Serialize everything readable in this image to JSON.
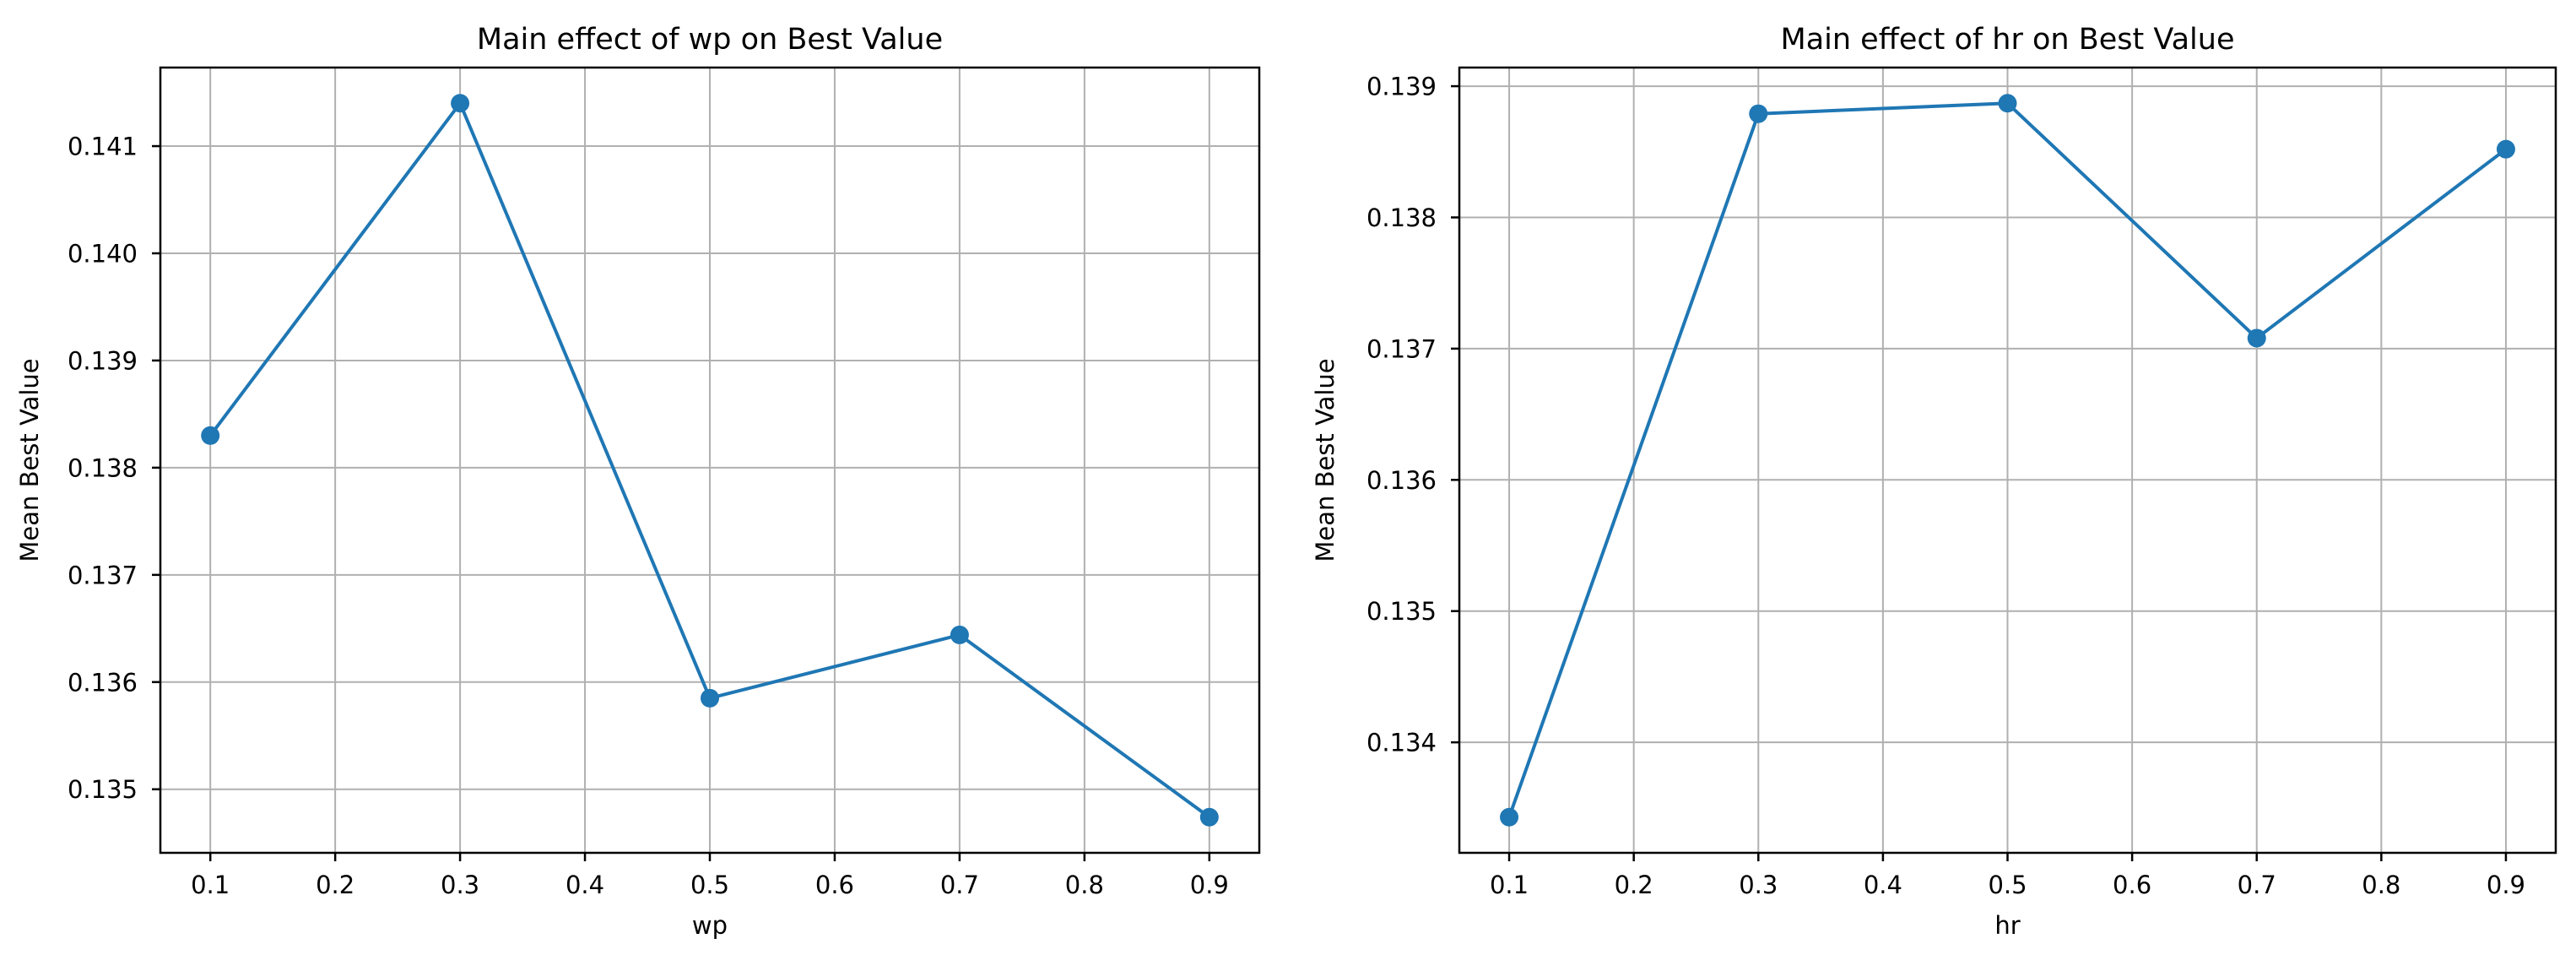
{
  "figure": {
    "colors": {
      "line": "#1f77b4",
      "marker": "#1f77b4",
      "grid": "#b0b0b0",
      "spine": "#000000",
      "text": "#000000",
      "background": "#ffffff"
    }
  },
  "chart_data": [
    {
      "type": "line",
      "title": "Main effect of wp on Best Value",
      "xlabel": "wp",
      "ylabel": "Mean Best Value",
      "x": [
        0.1,
        0.3,
        0.5,
        0.7,
        0.9
      ],
      "values": [
        0.1383,
        0.1414,
        0.13585,
        0.13644,
        0.13474
      ],
      "x_tick_labels": [
        "0.1",
        "0.2",
        "0.3",
        "0.4",
        "0.5",
        "0.6",
        "0.7",
        "0.8",
        "0.9"
      ],
      "y_tick_labels": [
        "0.135",
        "0.136",
        "0.137",
        "0.138",
        "0.139",
        "0.140",
        "0.141"
      ],
      "xlim": [
        0.06,
        0.94
      ],
      "ylim": [
        0.134407,
        0.141733
      ],
      "grid": true,
      "marker": "o"
    },
    {
      "type": "line",
      "title": "Main effect of hr on Best Value",
      "xlabel": "hr",
      "ylabel": "Mean Best Value",
      "x": [
        0.1,
        0.3,
        0.5,
        0.7,
        0.9
      ],
      "values": [
        0.13343,
        0.13879,
        0.13887,
        0.13708,
        0.13852
      ],
      "x_tick_labels": [
        "0.1",
        "0.2",
        "0.3",
        "0.4",
        "0.5",
        "0.6",
        "0.7",
        "0.8",
        "0.9"
      ],
      "y_tick_labels": [
        "0.134",
        "0.135",
        "0.136",
        "0.137",
        "0.138",
        "0.139"
      ],
      "xlim": [
        0.06,
        0.94
      ],
      "ylim": [
        0.133158,
        0.139142
      ],
      "grid": true,
      "marker": "o"
    }
  ]
}
